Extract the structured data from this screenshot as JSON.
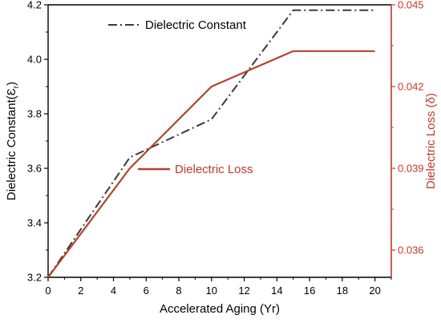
{
  "chart_data": {
    "type": "line",
    "xlabel": "Accelerated Aging (Yr)",
    "ylabel_left": "Dielectric Constant(Ɛ",
    "ylabel_left_sub": "r",
    "ylabel_left_close": ")",
    "ylabel_right": "Dielectric Loss (δ)",
    "xlim": [
      0,
      21
    ],
    "x_ticks": [
      "0",
      "2",
      "4",
      "6",
      "8",
      "10",
      "12",
      "14",
      "16",
      "18",
      "20"
    ],
    "ylim_left": [
      3.2,
      4.2
    ],
    "y_ticks_left": [
      "3.2",
      "3.4",
      "3.6",
      "3.8",
      "4.0",
      "4.2"
    ],
    "ylim_right": [
      0.035,
      0.045
    ],
    "y_ticks_right": [
      "0.036",
      "0.039",
      "0.042",
      "0.045"
    ],
    "grid": false,
    "series": [
      {
        "name": "Dielectric Constant",
        "axis": "left",
        "style": "dash-dot",
        "color": "#3a3a3a",
        "x": [
          0,
          5,
          10,
          15,
          20
        ],
        "y": [
          3.2,
          3.64,
          3.78,
          4.18,
          4.18
        ]
      },
      {
        "name": "Dielectric Loss",
        "axis": "right",
        "style": "solid",
        "color": "#b5412e",
        "x": [
          0,
          5,
          10,
          15,
          20
        ],
        "y": [
          0.035,
          0.039,
          0.042,
          0.0433,
          0.0433
        ]
      }
    ],
    "colors": {
      "right_axis": "#c0392b",
      "left_axis": "#000000"
    }
  }
}
